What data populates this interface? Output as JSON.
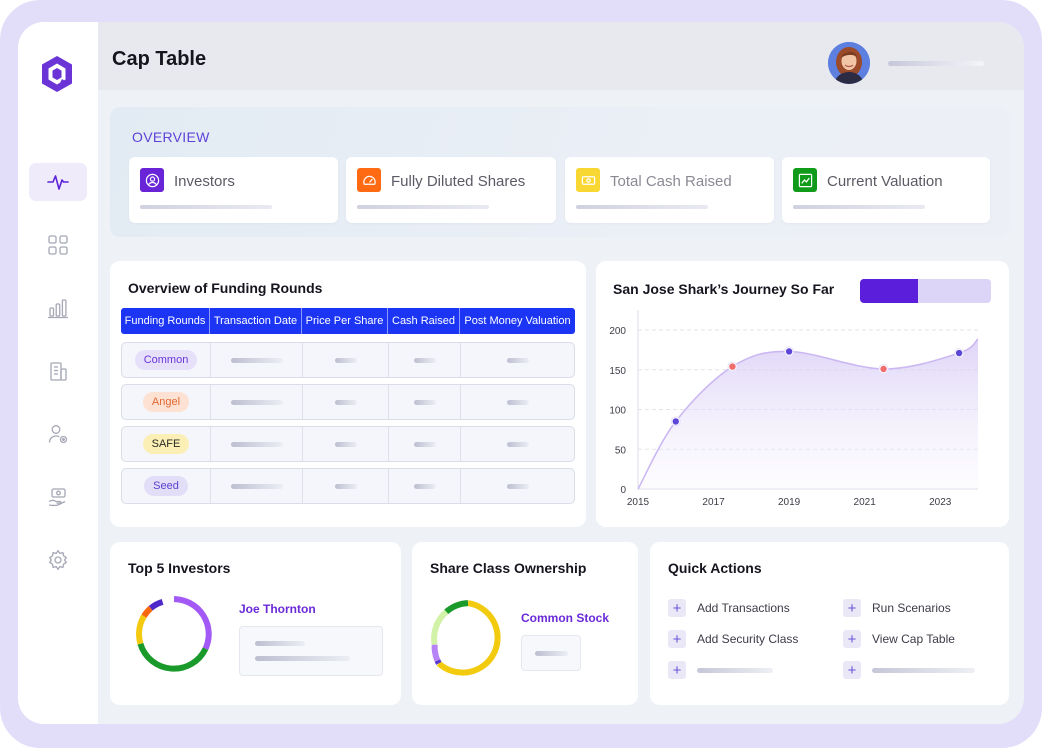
{
  "header": {
    "title": "Cap Table"
  },
  "overview": {
    "title": "OVERVIEW",
    "cards": [
      {
        "label": "Investors",
        "icon": "user-circle-icon",
        "color": "#6a24d8"
      },
      {
        "label": "Fully Diluted Shares",
        "icon": "gauge-icon",
        "color": "#ff6a13"
      },
      {
        "label": "Total Cash Raised",
        "icon": "banknote-icon",
        "color": "#f9d733"
      },
      {
        "label": "Current Valuation",
        "icon": "trending-up-icon",
        "color": "#109c1a"
      }
    ]
  },
  "funding": {
    "title": "Overview of Funding Rounds",
    "columns": [
      "Funding Rounds",
      "Transaction Date",
      "Price Per Share",
      "Cash Raised",
      "Post Money Valuation"
    ],
    "rows": [
      {
        "round": "Common",
        "color": "#6a35d8",
        "bg": "#e6e0fa"
      },
      {
        "round": "Angel",
        "color": "#e06a34",
        "bg": "#fde1d2"
      },
      {
        "round": "SAFE",
        "color": "#2a2a20",
        "bg": "#fbefb6"
      },
      {
        "round": "Seed",
        "color": "#5b3ed0",
        "bg": "#e2def8"
      }
    ]
  },
  "journey": {
    "title": "San Jose Shark’s Journey So Far"
  },
  "chart_data": {
    "type": "line",
    "title": "San Jose Shark’s Journey So Far",
    "xlabel": "",
    "ylabel": "",
    "xlim": [
      2015,
      2024
    ],
    "ylim": [
      0,
      200
    ],
    "x_ticks": [
      2015,
      2017,
      2019,
      2021,
      2023
    ],
    "y_ticks": [
      0,
      50,
      100,
      150,
      200
    ],
    "x": [
      2016,
      2017.5,
      2019,
      2021.5,
      2023.5
    ],
    "y": [
      85,
      154,
      173,
      151,
      171
    ],
    "point_colors": [
      "#5b46d8",
      "#f16d6d",
      "#5b46d8",
      "#f16d6d",
      "#5b46d8"
    ],
    "grid": true
  },
  "investors": {
    "title": "Top 5 Investors",
    "top_name": "Joe Thornton"
  },
  "share_class": {
    "title": "Share Class Ownership",
    "top_name": "Common Stock"
  },
  "quick_actions": {
    "title": "Quick Actions",
    "items": [
      "Add Transactions",
      "Run Scenarios",
      "Add Security Class",
      "View Cap Table"
    ]
  }
}
